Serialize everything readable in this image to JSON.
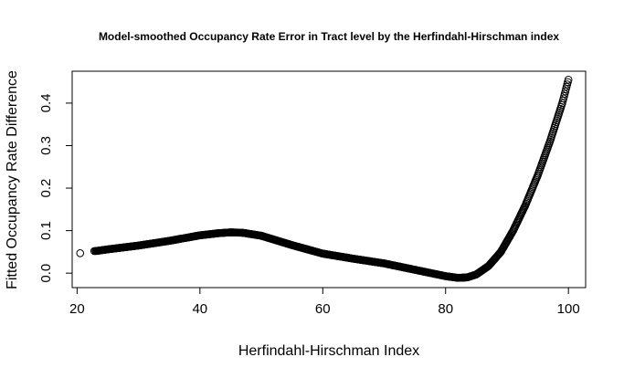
{
  "chart_data": {
    "type": "scatter",
    "title": "Model-smoothed Occupancy Rate Error in Tract level by the Herfindahl-Hirschman index",
    "xlabel": "Herfindahl-Hirschman Index",
    "ylabel": "Fitted Occupancy Rate Difference",
    "xlim": [
      19.2,
      102.8
    ],
    "ylim": [
      -0.034,
      0.475
    ],
    "xticks": [
      20,
      40,
      60,
      80,
      100
    ],
    "xtick_labels": [
      "20",
      "40",
      "60",
      "80",
      "100"
    ],
    "yticks": [
      0.0,
      0.1,
      0.2,
      0.3,
      0.4
    ],
    "ytick_labels": [
      "0.0",
      "0.1",
      "0.2",
      "0.3",
      "0.4"
    ],
    "grid": false,
    "marker": "open-circle",
    "outlier_points": [
      {
        "x": 20.5,
        "y": 0.047
      },
      {
        "x": 22.8,
        "y": 0.052
      }
    ],
    "curve": {
      "x": [
        23,
        25,
        30,
        35,
        40,
        43,
        45,
        47,
        50,
        55,
        60,
        65,
        70,
        75,
        78,
        80,
        82,
        83.5,
        85,
        87,
        89,
        91,
        93,
        95,
        97,
        99,
        100
      ],
      "y": [
        0.052,
        0.056,
        0.065,
        0.076,
        0.089,
        0.094,
        0.096,
        0.095,
        0.088,
        0.066,
        0.046,
        0.034,
        0.023,
        0.008,
        -0.001,
        -0.007,
        -0.011,
        -0.01,
        -0.003,
        0.017,
        0.05,
        0.1,
        0.16,
        0.23,
        0.31,
        0.4,
        0.455
      ]
    }
  }
}
